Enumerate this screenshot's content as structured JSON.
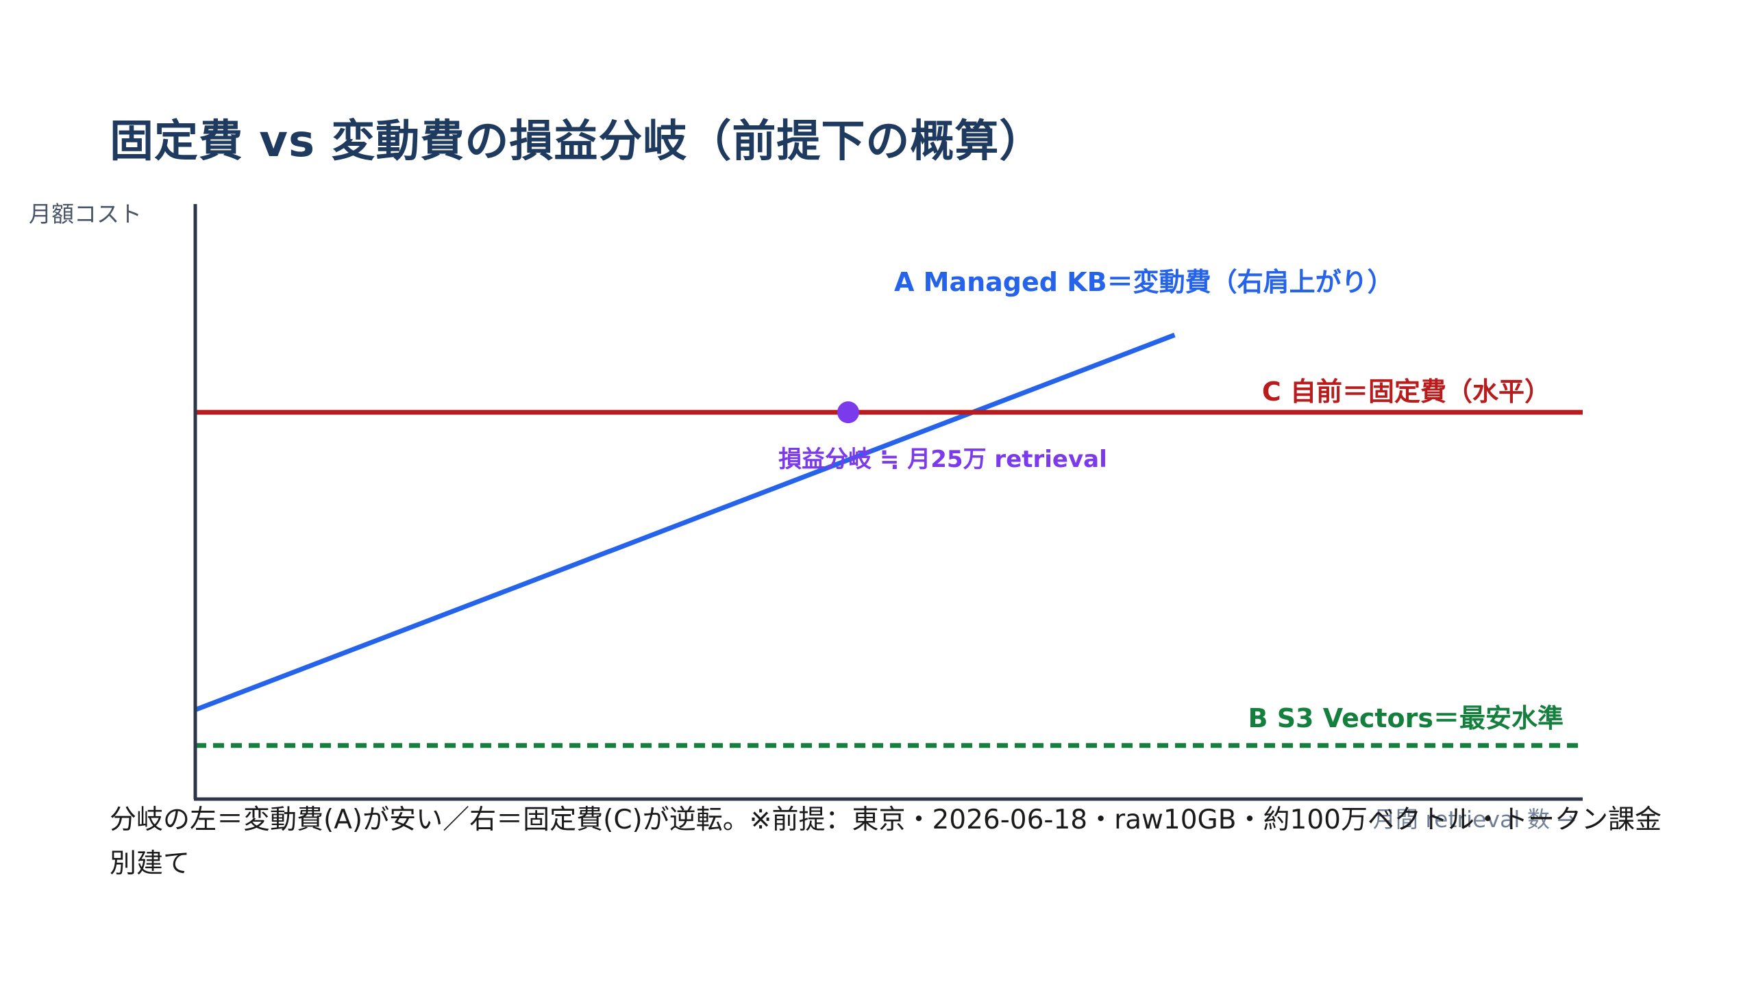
{
  "title": "固定費 vs 変動費の損益分岐（前提下の概算）",
  "note": "分岐の左＝変動費(A)が安い／右＝固定費(C)が逆転。※前提：東京・2026-06-18・raw10GB・約100万ベクトル・トークン課金別建て",
  "colors": {
    "managed": "#2563eb",
    "selfhost": "#b91c1c",
    "s3": "#15803d",
    "breakeven": "#7c3aed",
    "axis": "#2d3748"
  },
  "chart_data": {
    "type": "line",
    "title": "固定費 vs 変動費の損益分岐（前提下の概算）",
    "xlabel": "月間 retrieval 数 →",
    "ylabel": "月額コスト",
    "xlim": [
      0,
      51
    ],
    "ylim": [
      0,
      100
    ],
    "grid": false,
    "series": [
      {
        "name": "A Managed KB＝変動費（右肩上がり）",
        "color": "#2563eb",
        "style": "solid",
        "x": [
          0,
          36
        ],
        "y": [
          15,
          78
        ]
      },
      {
        "name": "C 自前＝固定費（水平）",
        "color": "#b91c1c",
        "style": "solid",
        "x": [
          0,
          51
        ],
        "y": [
          65,
          65
        ]
      },
      {
        "name": "B S3 Vectors＝最安水準",
        "color": "#15803d",
        "style": "dashed",
        "x": [
          0,
          51
        ],
        "y": [
          9,
          9
        ]
      }
    ],
    "annotations": [
      {
        "text": "損益分岐 ≒ 月25万 retrieval",
        "x": 24,
        "y": 65,
        "color": "#7c3aed"
      }
    ]
  }
}
